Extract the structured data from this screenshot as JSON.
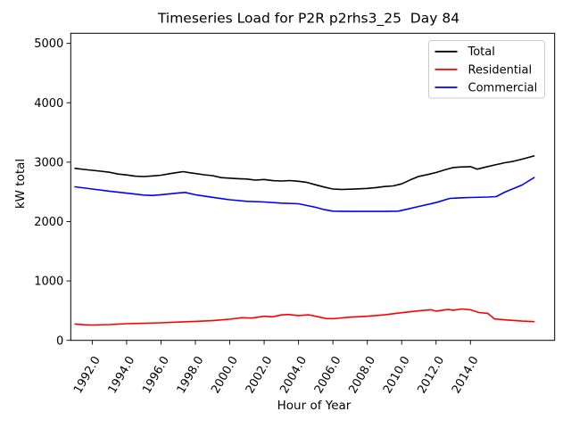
{
  "figure": {
    "kind": "matplotlib-line-plot",
    "background": "#ffffff",
    "frame_color": "#000000",
    "legend_edge_color": "#cccccc"
  },
  "chart_data": {
    "type": "line",
    "title": "Timeseries Load for P2R p2rhs3_25  Day 84",
    "xlabel": "Hour of Year",
    "ylabel": "kW total",
    "xlim": [
      1990.75,
      2018.9
    ],
    "ylim": [
      0,
      5170
    ],
    "grid": false,
    "legend_position": "upper right",
    "x_ticks": {
      "values": [
        1992,
        1994,
        1996,
        1998,
        2000,
        2002,
        2004,
        2006,
        2008,
        2010,
        2012,
        2014
      ],
      "labels": [
        "1992.0",
        "1994.0",
        "1996.0",
        "1998.0",
        "2000.0",
        "2002.0",
        "2004.0",
        "2006.0",
        "2008.0",
        "2010.0",
        "2012.0",
        "2014.0"
      ],
      "rotation_deg": 60
    },
    "y_ticks": {
      "values": [
        0,
        1000,
        2000,
        3000,
        4000,
        5000
      ],
      "labels": [
        "0",
        "1000",
        "2000",
        "3000",
        "4000",
        "5000"
      ]
    },
    "series": [
      {
        "name": "Total",
        "color": "#000000",
        "x": [
          1991,
          1991.5,
          1992,
          1992.5,
          1993,
          1993.5,
          1994,
          1994.5,
          1995,
          1995.5,
          1996,
          1996.5,
          1997,
          1997.3,
          1997.7,
          1998,
          1998.5,
          1999,
          1999.5,
          2000,
          2000.5,
          2001,
          2001.5,
          2002,
          2002.5,
          2003,
          2003.5,
          2004,
          2004.5,
          2005,
          2005.5,
          2006,
          2006.5,
          2007,
          2007.5,
          2008,
          2008.5,
          2009,
          2009.5,
          2010,
          2010.5,
          2011,
          2011.5,
          2012,
          2012.5,
          2013,
          2013.4,
          2014,
          2014.4,
          2014.9,
          2015.3,
          2016,
          2016.5,
          2017,
          2017.7
        ],
        "y": [
          2895,
          2878,
          2862,
          2848,
          2830,
          2800,
          2785,
          2763,
          2757,
          2768,
          2780,
          2806,
          2828,
          2840,
          2820,
          2808,
          2788,
          2772,
          2740,
          2730,
          2722,
          2715,
          2698,
          2708,
          2688,
          2682,
          2690,
          2678,
          2658,
          2618,
          2580,
          2548,
          2540,
          2545,
          2550,
          2558,
          2572,
          2590,
          2600,
          2635,
          2700,
          2760,
          2790,
          2825,
          2870,
          2910,
          2918,
          2925,
          2882,
          2918,
          2945,
          2990,
          3015,
          3050,
          3105
        ]
      },
      {
        "name": "Residential",
        "color": "#ff0000",
        "x": [
          1991,
          1991.5,
          1992,
          1993,
          1994,
          1995,
          1996,
          1997,
          1998,
          1999,
          2000,
          2000.7,
          2001.3,
          2002,
          2002.5,
          2003,
          2003.4,
          2004,
          2004.6,
          2005,
          2005.6,
          2006,
          2007,
          2008,
          2009,
          2010,
          2011,
          2011.7,
          2012,
          2012.7,
          2013,
          2013.5,
          2014,
          2014.5,
          2015,
          2015.4,
          2016,
          2017,
          2017.7
        ],
        "y": [
          275,
          263,
          258,
          265,
          280,
          287,
          295,
          307,
          320,
          332,
          356,
          382,
          375,
          405,
          396,
          428,
          436,
          418,
          430,
          405,
          368,
          365,
          390,
          405,
          430,
          465,
          497,
          515,
          492,
          520,
          507,
          528,
          515,
          468,
          455,
          360,
          345,
          325,
          315
        ]
      },
      {
        "name": "Commercial",
        "color": "#0000ff",
        "x": [
          1991,
          1992,
          1993,
          1994,
          1995,
          1995.5,
          1996,
          1997,
          1997.4,
          1998,
          1999,
          2000,
          2001,
          2002,
          2003,
          2004,
          2004.5,
          2005,
          2005.5,
          2006,
          2007,
          2008,
          2009,
          2009.8,
          2010.5,
          2011,
          2012,
          2012.8,
          2013.5,
          2014,
          2015,
          2015.5,
          2016,
          2017,
          2017.7
        ],
        "y": [
          2585,
          2548,
          2512,
          2478,
          2445,
          2440,
          2452,
          2482,
          2490,
          2452,
          2408,
          2368,
          2340,
          2330,
          2310,
          2300,
          2270,
          2240,
          2200,
          2175,
          2170,
          2170,
          2170,
          2175,
          2220,
          2255,
          2320,
          2390,
          2400,
          2405,
          2412,
          2420,
          2495,
          2615,
          2740
        ]
      }
    ]
  }
}
